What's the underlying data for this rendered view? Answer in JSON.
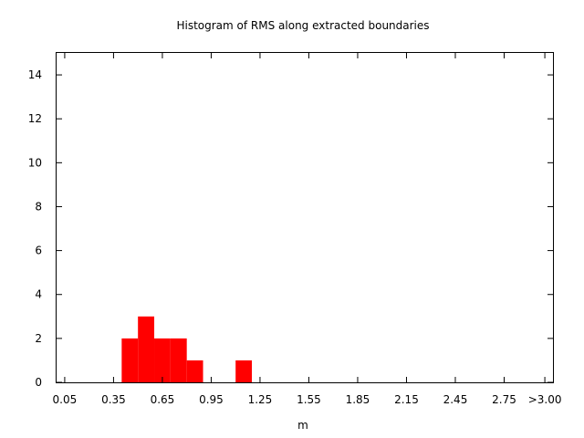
{
  "chart_data": {
    "type": "bar",
    "title": "Histogram of RMS along extracted boundaries",
    "xlabel": "m",
    "ylabel": "",
    "ylim": [
      0,
      15
    ],
    "xlim": [
      0.0,
      3.05
    ],
    "bin_width": 0.1,
    "grid": false,
    "legend": "none",
    "color": "#ff0000",
    "x_tick_labels": [
      {
        "value": 0.05,
        "label": "0.05"
      },
      {
        "value": 0.35,
        "label": "0.35"
      },
      {
        "value": 0.65,
        "label": "0.65"
      },
      {
        "value": 0.95,
        "label": "0.95"
      },
      {
        "value": 1.25,
        "label": "1.25"
      },
      {
        "value": 1.55,
        "label": "1.55"
      },
      {
        "value": 1.85,
        "label": "1.85"
      },
      {
        "value": 2.15,
        "label": "2.15"
      },
      {
        "value": 2.45,
        "label": "2.45"
      },
      {
        "value": 2.75,
        "label": "2.75"
      },
      {
        "value": 3.0,
        "label": ">3.00"
      }
    ],
    "y_tick_labels": [
      {
        "value": 0,
        "label": "0"
      },
      {
        "value": 2,
        "label": "2"
      },
      {
        "value": 4,
        "label": "4"
      },
      {
        "value": 6,
        "label": "6"
      },
      {
        "value": 8,
        "label": "8"
      },
      {
        "value": 10,
        "label": "10"
      },
      {
        "value": 12,
        "label": "12"
      },
      {
        "value": 14,
        "label": "14"
      }
    ],
    "bins": [
      {
        "x": 0.45,
        "count": 2
      },
      {
        "x": 0.55,
        "count": 3
      },
      {
        "x": 0.65,
        "count": 2
      },
      {
        "x": 0.75,
        "count": 2
      },
      {
        "x": 0.85,
        "count": 1
      },
      {
        "x": 1.15,
        "count": 1
      }
    ]
  }
}
